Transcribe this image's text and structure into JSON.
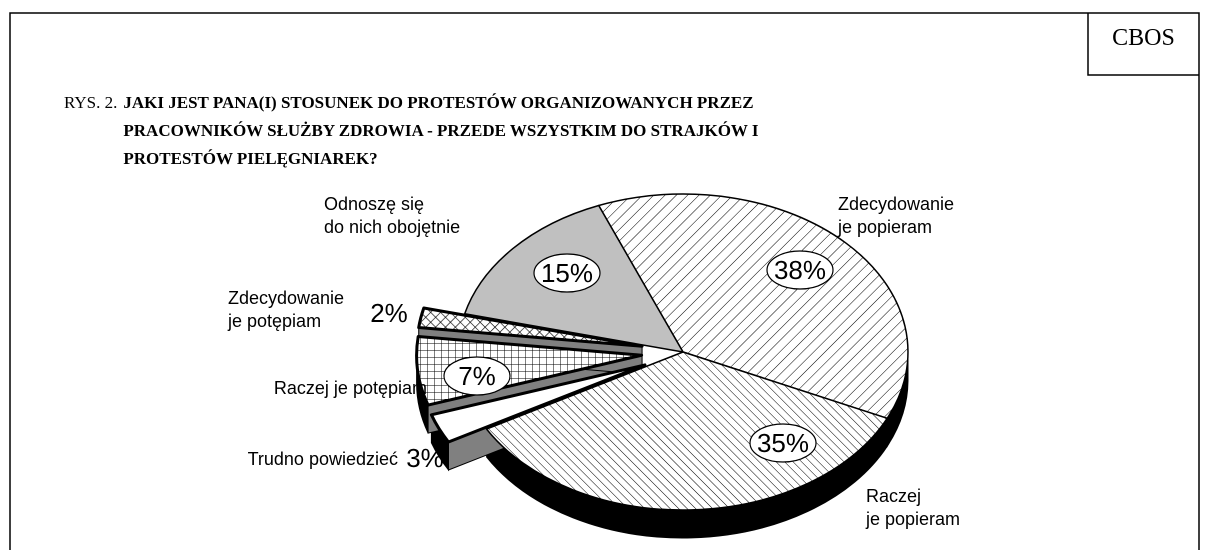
{
  "source": "CBOS",
  "chart_data": {
    "type": "pie",
    "label_prefix": "RYS. 2.",
    "title": "JAKI JEST PANA(I) STOSUNEK DO PROTESTÓW ORGANIZOWANYCH PRZEZ PRACOWNIKÓW SŁUŻBY ZDROWIA - PRZEDE WSZYSTKIM DO STRAJKÓW I  PROTESTÓW PIELĘGNIAREK?",
    "categories": [
      "Zdecydowanie\nje popieram",
      "Raczej\nje popieram",
      "Trudno powiedzieć",
      "Raczej je potępiam",
      "Zdecydowanie\nje potępiam",
      "Odnoszę się\ndo nich obojętnie"
    ],
    "values": [
      38,
      35,
      3,
      7,
      2,
      15
    ],
    "value_labels": [
      "38%",
      "35%",
      "3%",
      "7%",
      "2%",
      "15%"
    ],
    "fills": [
      "hatch-fwd",
      "hatch-back",
      "white",
      "grid",
      "crosshatch",
      "gray"
    ],
    "exploded": [
      false,
      false,
      true,
      true,
      true,
      false
    ],
    "value_label_boxed": [
      true,
      true,
      false,
      true,
      false,
      true
    ]
  }
}
